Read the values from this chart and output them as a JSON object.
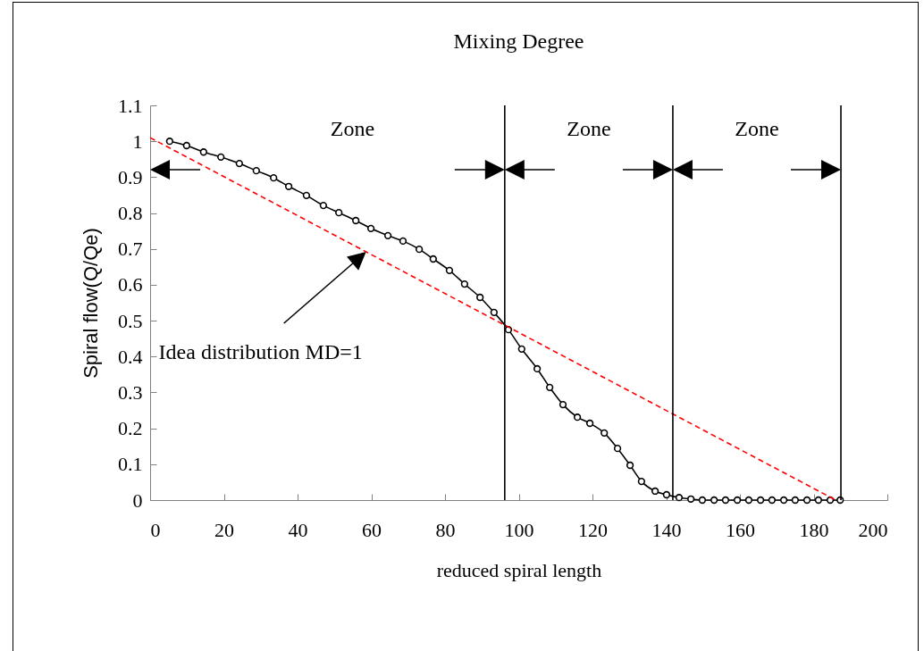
{
  "chart_data": {
    "type": "line",
    "title": "Mixing Degree",
    "xlabel": "reduced spiral  length",
    "ylabel": "Spiral flow(Q/Qe)",
    "xlim": [
      0,
      200
    ],
    "xticks": [
      0,
      20,
      40,
      60,
      80,
      100,
      120,
      140,
      160,
      180,
      200
    ],
    "ylim": [
      0,
      1.1
    ],
    "yticks": [
      0,
      0.1,
      0.2,
      0.3,
      0.4,
      0.5,
      0.6,
      0.7,
      0.8,
      0.9,
      1,
      1.1
    ],
    "marker": "circle",
    "line_style": "solid",
    "series": [
      {
        "color": "#000000",
        "x": [
          5.3,
          9.9,
          14.5,
          19.2,
          24.2,
          28.8,
          33.5,
          37.6,
          42.4,
          47.0,
          51.2,
          55.8,
          59.9,
          64.5,
          68.6,
          73.0,
          76.8,
          81.2,
          85.3,
          89.5,
          93.3,
          97.2,
          100.8,
          105.0,
          108.4,
          112.0,
          115.9,
          119.3,
          123.2,
          126.8,
          130.2,
          133.3,
          137.0,
          140.1,
          143.5,
          146.7,
          149.8,
          153.0,
          156.1,
          159.3,
          162.4,
          165.6,
          168.7,
          171.9,
          175.0,
          178.2,
          181.3,
          184.5,
          187.2
        ],
        "values": [
          1.0,
          0.988,
          0.97,
          0.956,
          0.938,
          0.918,
          0.898,
          0.874,
          0.849,
          0.821,
          0.801,
          0.779,
          0.757,
          0.737,
          0.722,
          0.699,
          0.672,
          0.64,
          0.602,
          0.565,
          0.523,
          0.475,
          0.421,
          0.366,
          0.314,
          0.266,
          0.231,
          0.214,
          0.187,
          0.144,
          0.097,
          0.052,
          0.025,
          0.015,
          0.007,
          0.003,
          0,
          0,
          0,
          0,
          0,
          0,
          0,
          0,
          0,
          0,
          0,
          0,
          0
        ]
      },
      {
        "color": "#ff0000",
        "line_style": "dashed",
        "marker": "none",
        "x": [
          0,
          186
        ],
        "values": [
          1.01,
          0
        ]
      }
    ],
    "ref_lines": [
      {
        "axis": "x",
        "value": 96.2
      },
      {
        "axis": "x",
        "value": 141.8
      },
      {
        "axis": "x",
        "value": 187.4
      }
    ],
    "annotations": [
      "Zone",
      "Zone",
      "Zone",
      "Idea distribution MD=1"
    ]
  }
}
